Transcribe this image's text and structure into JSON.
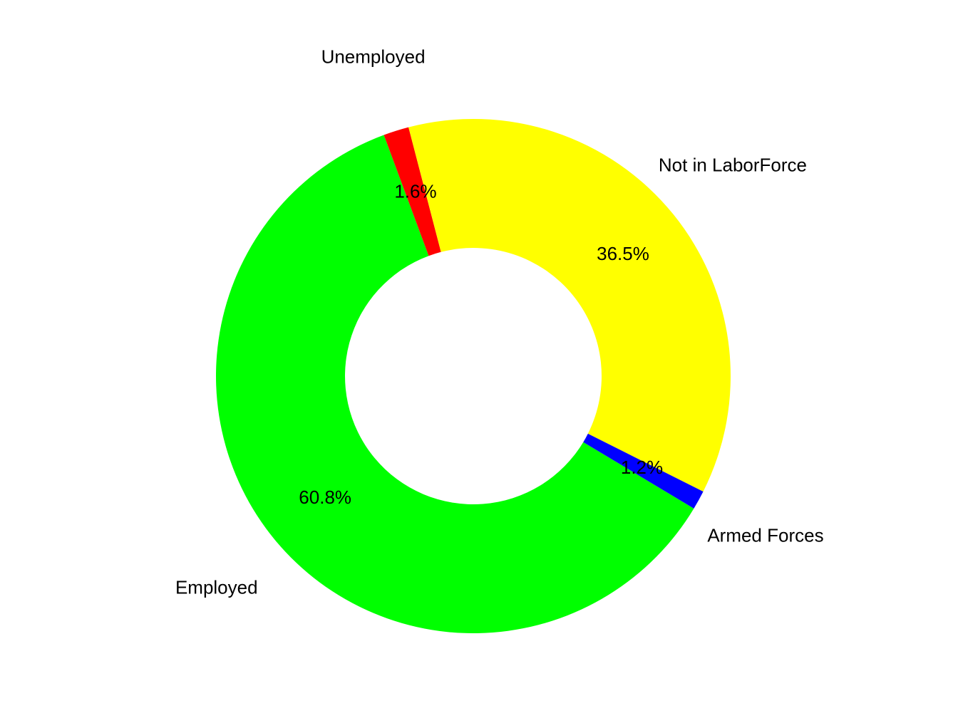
{
  "chart_data": {
    "type": "donut",
    "categories": [
      "Employed",
      "Unemployed",
      "Not in LaborForce",
      "Armed Forces"
    ],
    "values": [
      60.8,
      1.6,
      36.5,
      1.2
    ],
    "value_labels": [
      "60.8%",
      "1.6%",
      "36.5%",
      "1.2%"
    ],
    "colors": [
      "#00ff00",
      "#ff0000",
      "#ffff00",
      "#0000ff"
    ]
  }
}
